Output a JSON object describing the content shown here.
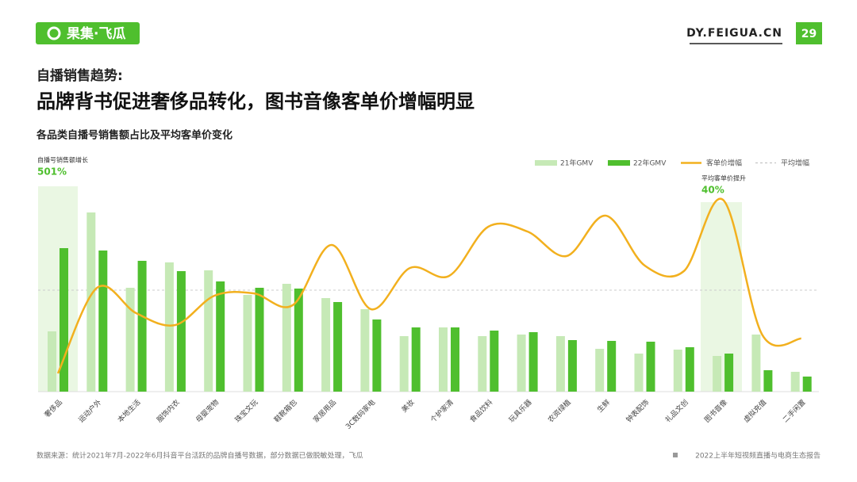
{
  "header": {
    "logo": "果集·飞瓜",
    "site": "DY.FEIGUA.CN",
    "page": "29"
  },
  "section": "自播销售趋势:",
  "headline": "品牌背书促进奢侈品转化，图书音像客单价增幅明显",
  "chart_data": {
    "type": "bar-line",
    "title": "各品类自播号销售额占比及平均客单价变化",
    "categories": [
      "奢侈品",
      "运动户外",
      "本地生活",
      "服饰内衣",
      "母婴宠物",
      "珠宝文玩",
      "鞋靴箱包",
      "家居用品",
      "3C数码家电",
      "美妆",
      "个护家清",
      "食品饮料",
      "玩具乐器",
      "农资绿植",
      "生鲜",
      "钟表配饰",
      "礼品文创",
      "图书音像",
      "虚拟充值",
      "二手闲置"
    ],
    "series": [
      {
        "name": "21年GMV",
        "color": "#c6e9b6",
        "values": [
          76,
          226,
          131,
          163,
          153,
          122,
          136,
          118,
          104,
          70,
          81,
          70,
          72,
          70,
          54,
          48,
          53,
          45,
          72,
          25
        ]
      },
      {
        "name": "22年GMV",
        "color": "#4fbf2e",
        "values": [
          181,
          178,
          165,
          152,
          139,
          131,
          130,
          113,
          91,
          81,
          81,
          77,
          75,
          65,
          64,
          63,
          56,
          48,
          27,
          19
        ]
      },
      {
        "name": "客单价增幅",
        "color": "#f2b01e",
        "values": [
          23,
          131,
          99,
          84,
          121,
          124,
          109,
          185,
          104,
          156,
          146,
          208,
          202,
          171,
          222,
          159,
          152,
          242,
          72,
          67
        ]
      }
    ],
    "average_line": {
      "name": "平均增幅",
      "value": 128
    },
    "annotations": [
      {
        "label": "自播号销售额增长",
        "value": "501%"
      },
      {
        "label": "平均客单价提升",
        "value": "40%"
      }
    ]
  },
  "footer": {
    "source": "数据来源：统计2021年7月-2022年6月抖音平台活跃的品牌自播号数据，部分数据已做脱敏处理，飞瓜",
    "report": "2022上半年短视频直播与电商生态报告"
  }
}
